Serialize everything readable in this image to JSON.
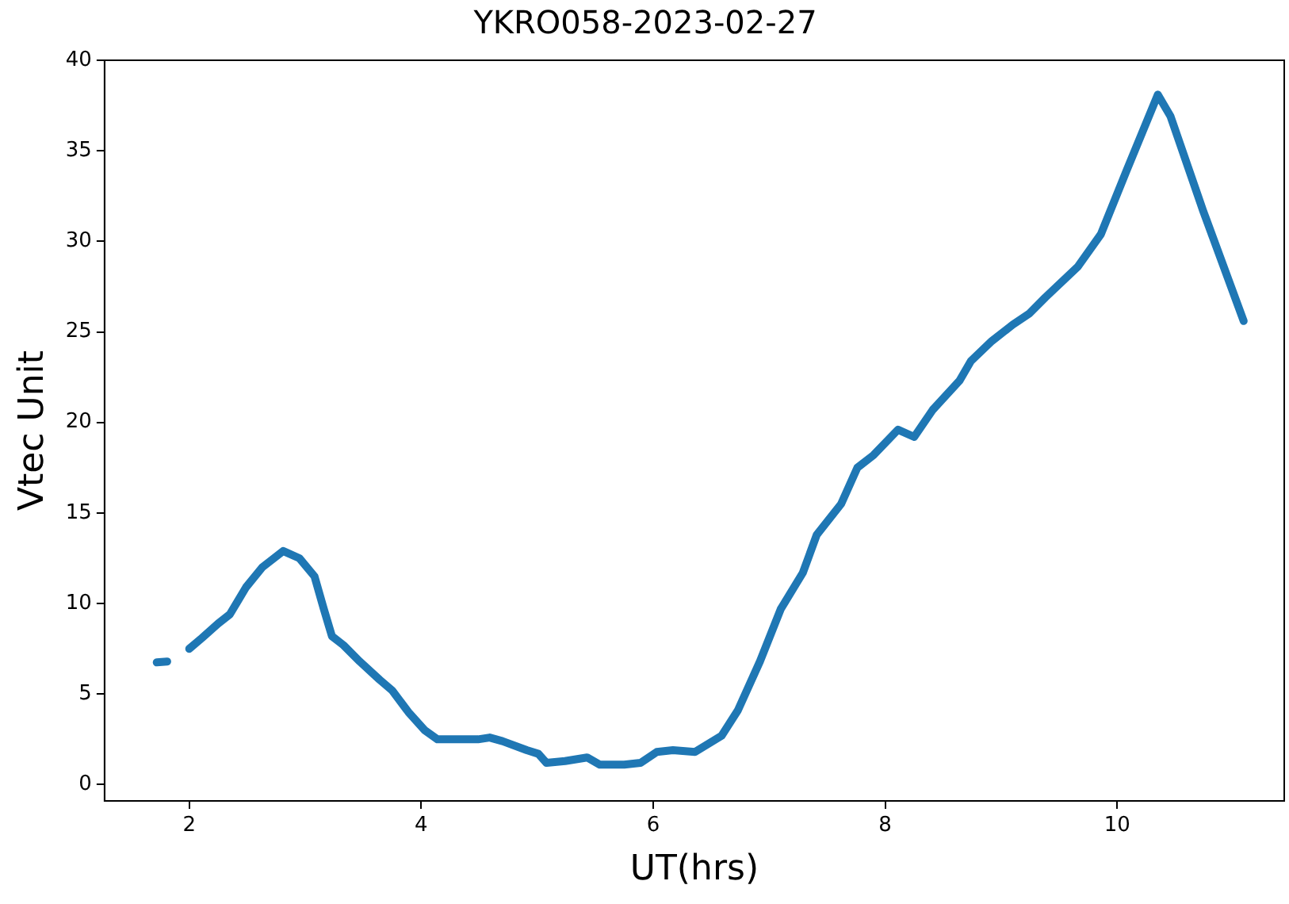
{
  "chart_data": {
    "type": "line",
    "title": "YKRO058-2023-02-27",
    "xlabel": "UT(hrs)",
    "ylabel": "Vtec Unit",
    "xlim": [
      1.27,
      11.44
    ],
    "ylim": [
      -0.9,
      40
    ],
    "xticks": [
      2,
      4,
      6,
      8,
      10
    ],
    "yticks": [
      0,
      5,
      10,
      15,
      20,
      25,
      30,
      35,
      40
    ],
    "grid": false,
    "legend": false,
    "marker": "none",
    "series": [
      {
        "color": "#1f77b4",
        "x": [
          1.72,
          1.81,
          1.88,
          2.0,
          2.11,
          2.25,
          2.35,
          2.49,
          2.63,
          2.81,
          2.95,
          3.08,
          3.16,
          3.23,
          3.33,
          3.47,
          3.64,
          3.75,
          3.89,
          4.03,
          4.14,
          4.31,
          4.49,
          4.59,
          4.7,
          4.91,
          5.01,
          5.08,
          5.24,
          5.43,
          5.54,
          5.75,
          5.89,
          6.03,
          6.17,
          6.36,
          6.59,
          6.73,
          6.92,
          7.1,
          7.29,
          7.41,
          7.62,
          7.76,
          7.9,
          8.11,
          8.25,
          8.41,
          8.64,
          8.74,
          8.92,
          9.1,
          9.24,
          9.38,
          9.66,
          9.86,
          10.08,
          10.35,
          10.46,
          10.74,
          11.09
        ],
        "values": [
          6.75,
          6.8,
          null,
          7.5,
          8.1,
          8.9,
          9.4,
          10.9,
          12.0,
          12.9,
          12.5,
          11.5,
          9.7,
          8.2,
          7.7,
          6.8,
          5.8,
          5.2,
          4.0,
          3.0,
          2.5,
          2.5,
          2.5,
          2.6,
          2.4,
          1.9,
          1.7,
          1.2,
          1.3,
          1.5,
          1.1,
          1.1,
          1.2,
          1.8,
          1.9,
          1.8,
          2.7,
          4.1,
          6.8,
          9.7,
          11.7,
          13.8,
          15.5,
          17.5,
          18.2,
          19.6,
          19.2,
          20.7,
          22.3,
          23.4,
          24.5,
          25.4,
          26.0,
          26.9,
          28.6,
          30.4,
          33.9,
          38.1,
          36.9,
          31.7,
          25.6
        ]
      }
    ]
  }
}
